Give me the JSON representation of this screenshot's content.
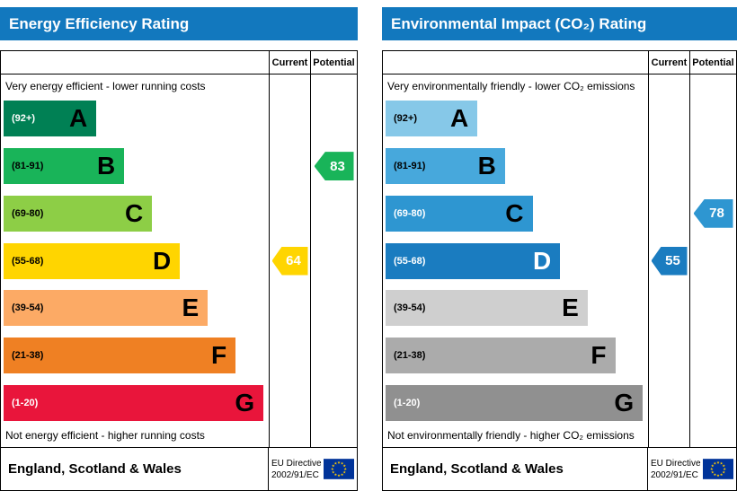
{
  "theme": {
    "header_color": "#1278be",
    "table_border_color": "#000000",
    "eu_flag": {
      "background": "#003399",
      "stars": "#ffcc00"
    }
  },
  "chart_data": [
    {
      "type": "bar",
      "chart": "energy-efficiency-rating",
      "title": "Energy Efficiency Rating",
      "columns": {
        "current": "Current",
        "potential": "Potential"
      },
      "top_caption": "Very energy efficient - lower running costs",
      "bottom_caption": "Not energy efficient - higher running costs",
      "scale_min": 1,
      "scale_max": 100,
      "bands": [
        {
          "letter": "A",
          "range": "(92+)",
          "min": 92,
          "max": 100,
          "color": "#008054",
          "range_color": "#ffffff",
          "letter_color": "#000000",
          "width_pct": 35
        },
        {
          "letter": "B",
          "range": "(81-91)",
          "min": 81,
          "max": 91,
          "color": "#19b459",
          "range_color": "#000000",
          "letter_color": "#000000",
          "width_pct": 45.5
        },
        {
          "letter": "C",
          "range": "(69-80)",
          "min": 69,
          "max": 80,
          "color": "#8dce46",
          "range_color": "#000000",
          "letter_color": "#000000",
          "width_pct": 56
        },
        {
          "letter": "D",
          "range": "(55-68)",
          "min": 55,
          "max": 68,
          "color": "#ffd500",
          "range_color": "#000000",
          "letter_color": "#000000",
          "width_pct": 66.5
        },
        {
          "letter": "E",
          "range": "(39-54)",
          "min": 39,
          "max": 54,
          "color": "#fcaa65",
          "range_color": "#000000",
          "letter_color": "#000000",
          "width_pct": 77
        },
        {
          "letter": "F",
          "range": "(21-38)",
          "min": 21,
          "max": 38,
          "color": "#ef8023",
          "range_color": "#000000",
          "letter_color": "#000000",
          "width_pct": 87.5
        },
        {
          "letter": "G",
          "range": "(1-20)",
          "min": 1,
          "max": 20,
          "color": "#e9153b",
          "range_color": "#ffffff",
          "letter_color": "#000000",
          "width_pct": 98
        }
      ],
      "ratings": {
        "current": {
          "value": 64,
          "band": "D",
          "band_index": 3,
          "color": "#ffd500",
          "text_color": "#ffffff"
        },
        "potential": {
          "value": 83,
          "band": "B",
          "band_index": 1,
          "color": "#19b459",
          "text_color": "#ffffff"
        }
      },
      "footer": {
        "region": "England, Scotland & Wales",
        "directive_line1": "EU Directive",
        "directive_line2": "2002/91/EC"
      }
    },
    {
      "type": "bar",
      "chart": "environmental-impact-co2-rating",
      "title": "Environmental Impact (CO₂) Rating",
      "columns": {
        "current": "Current",
        "potential": "Potential"
      },
      "top_caption": "Very environmentally friendly - lower CO₂ emissions",
      "bottom_caption": "Not environmentally friendly - higher CO₂ emissions",
      "scale_min": 1,
      "scale_max": 100,
      "bands": [
        {
          "letter": "A",
          "range": "(92+)",
          "min": 92,
          "max": 100,
          "color": "#86c8e8",
          "range_color": "#000000",
          "letter_color": "#000000",
          "width_pct": 35
        },
        {
          "letter": "B",
          "range": "(81-91)",
          "min": 81,
          "max": 91,
          "color": "#47a8dc",
          "range_color": "#000000",
          "letter_color": "#000000",
          "width_pct": 45.5
        },
        {
          "letter": "C",
          "range": "(69-80)",
          "min": 69,
          "max": 80,
          "color": "#2e96d1",
          "range_color": "#ffffff",
          "letter_color": "#000000",
          "width_pct": 56
        },
        {
          "letter": "D",
          "range": "(55-68)",
          "min": 55,
          "max": 68,
          "color": "#1a7cc0",
          "range_color": "#ffffff",
          "letter_color": "#ffffff",
          "width_pct": 66.5
        },
        {
          "letter": "E",
          "range": "(39-54)",
          "min": 39,
          "max": 54,
          "color": "#cfcfcf",
          "range_color": "#000000",
          "letter_color": "#000000",
          "width_pct": 77
        },
        {
          "letter": "F",
          "range": "(21-38)",
          "min": 21,
          "max": 38,
          "color": "#ababab",
          "range_color": "#000000",
          "letter_color": "#000000",
          "width_pct": 87.5
        },
        {
          "letter": "G",
          "range": "(1-20)",
          "min": 1,
          "max": 20,
          "color": "#909090",
          "range_color": "#ffffff",
          "letter_color": "#000000",
          "width_pct": 98
        }
      ],
      "ratings": {
        "current": {
          "value": 55,
          "band": "D",
          "band_index": 3,
          "color": "#1a7cc0",
          "text_color": "#ffffff"
        },
        "potential": {
          "value": 78,
          "band": "C",
          "band_index": 2,
          "color": "#2e96d1",
          "text_color": "#ffffff"
        }
      },
      "footer": {
        "region": "England, Scotland & Wales",
        "directive_line1": "EU Directive",
        "directive_line2": "2002/91/EC"
      }
    }
  ]
}
